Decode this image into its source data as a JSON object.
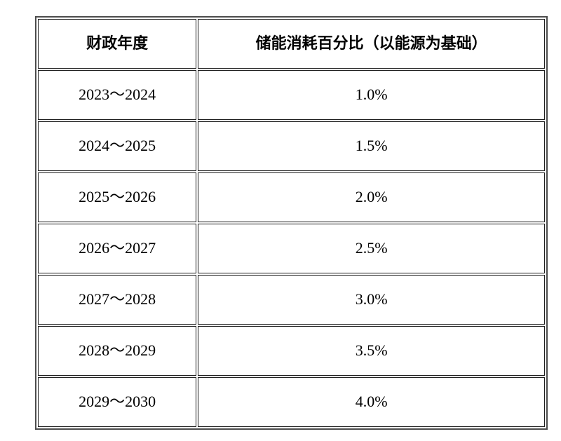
{
  "page": {
    "background_color": "#ffffff",
    "text_color": "#000000",
    "table_outer_border_color": "#4d4d4d",
    "table_cell_border_color": "#1f1f1f"
  },
  "table": {
    "headers": {
      "fiscal_year": "财政年度",
      "storage_percentage": "储能消耗百分比（以能源为基础）"
    },
    "rows": [
      {
        "year": "2023～2024",
        "pct": "1.0%"
      },
      {
        "year": "2024～2025",
        "pct": "1.5%"
      },
      {
        "year": "2025～2026",
        "pct": "2.0%"
      },
      {
        "year": "2026～2027",
        "pct": "2.5%"
      },
      {
        "year": "2027～2028",
        "pct": "3.0%"
      },
      {
        "year": "2028～2029",
        "pct": "3.5%"
      },
      {
        "year": "2029～2030",
        "pct": "4.0%"
      }
    ]
  },
  "chart_data": {
    "type": "table",
    "columns": [
      "财政年度",
      "储能消耗百分比（以能源为基础）"
    ],
    "rows": [
      [
        "2023～2024",
        "1.0%"
      ],
      [
        "2024～2025",
        "1.5%"
      ],
      [
        "2025～2026",
        "2.0%"
      ],
      [
        "2026～2027",
        "2.5%"
      ],
      [
        "2027～2028",
        "3.0%"
      ],
      [
        "2028～2029",
        "3.5%"
      ],
      [
        "2029～2030",
        "4.0%"
      ]
    ]
  }
}
